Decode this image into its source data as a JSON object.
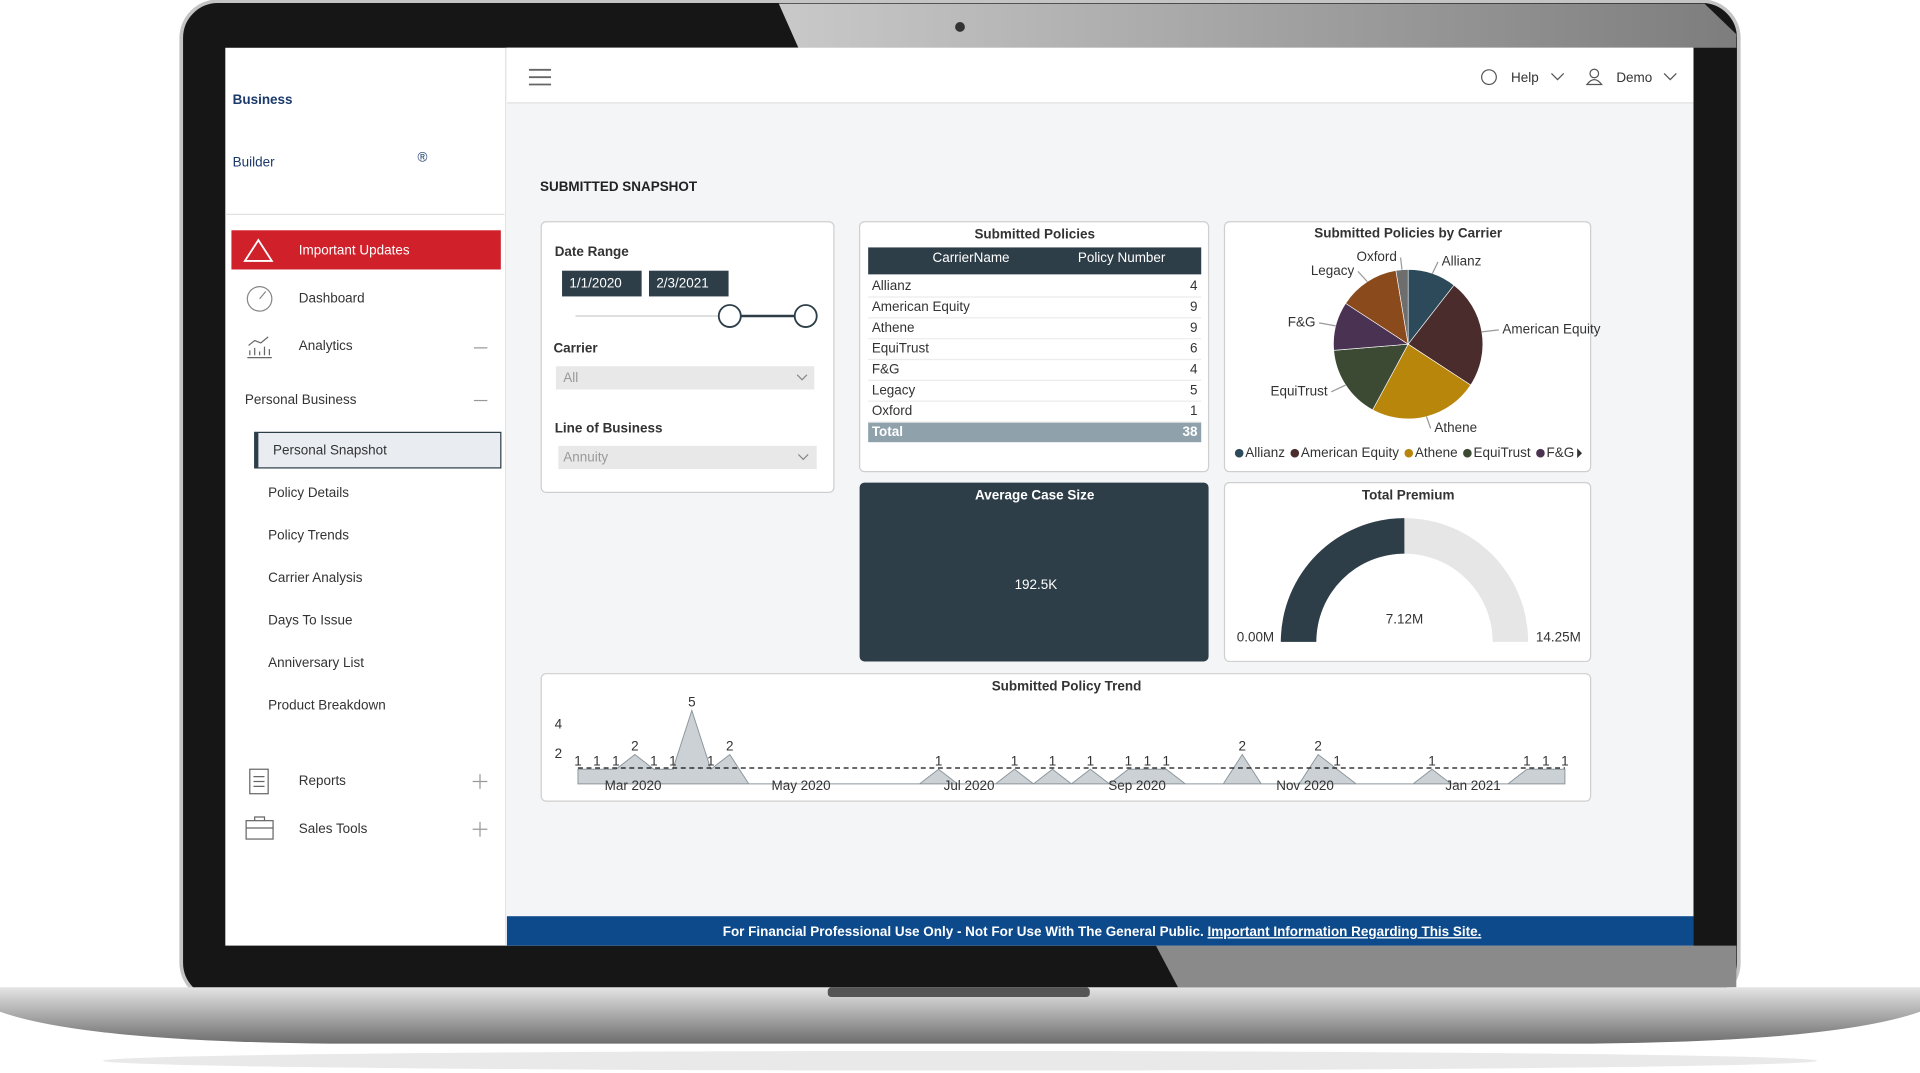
{
  "logo": {
    "line1": "Business",
    "line2": "Builder",
    "mark": "®"
  },
  "topbar": {
    "help": "Help",
    "user": "Demo"
  },
  "nav": {
    "important_updates": "Important Updates",
    "dashboard": "Dashboard",
    "analytics": "Analytics",
    "personal_business": "Personal Business",
    "sub_items": [
      "Personal Snapshot",
      "Policy Details",
      "Policy Trends",
      "Carrier Analysis",
      "Days To Issue",
      "Anniversary List",
      "Product Breakdown"
    ],
    "reports": "Reports",
    "sales_tools": "Sales Tools"
  },
  "page_title": "SUBMITTED SNAPSHOT",
  "filters": {
    "date_range": {
      "label": "Date Range",
      "start": "1/1/2020",
      "end": "2/3/2021"
    },
    "carrier": {
      "label": "Carrier",
      "value": "All"
    },
    "line_of_business": {
      "label": "Line of Business",
      "value": "Annuity"
    }
  },
  "policies_table": {
    "title": "Submitted Policies",
    "columns": [
      "CarrierName",
      "Policy Number"
    ],
    "rows": [
      [
        "Allianz",
        4
      ],
      [
        "American Equity",
        9
      ],
      [
        "Athene",
        9
      ],
      [
        "EquiTrust",
        6
      ],
      [
        "F&G",
        4
      ],
      [
        "Legacy",
        5
      ],
      [
        "Oxford",
        1
      ]
    ],
    "total": [
      "Total",
      38
    ]
  },
  "pie": {
    "type": "pie",
    "title": "Submitted Policies by Carrier",
    "categories": [
      "Allianz",
      "American Equity",
      "Athene",
      "EquiTrust",
      "F&G",
      "Legacy",
      "Oxford"
    ],
    "values": [
      4,
      9,
      9,
      6,
      4,
      5,
      1
    ],
    "colors": [
      "#2c4a5a",
      "#4b2c2c",
      "#b8860b",
      "#3c4a34",
      "#4a3352",
      "#8a4a1c",
      "#6e6e6e"
    ]
  },
  "avg_case": {
    "title": "Average Case Size",
    "value": "192.5K"
  },
  "premium": {
    "type": "gauge",
    "title": "Total Premium",
    "value": {
      "value": 7.12,
      "label": "7.12M"
    },
    "min": {
      "value": 0,
      "label": "0.00M"
    },
    "max": {
      "value": 14.25,
      "label": "14.25M"
    }
  },
  "trend": {
    "type": "area",
    "title": "Submitted Policy Trend",
    "x_labels": [
      "Mar 2020",
      "May 2020",
      "Jul 2020",
      "Sep 2020",
      "Nov 2020",
      "Jan 2021"
    ],
    "values": [
      1,
      1,
      1,
      2,
      1,
      1,
      5,
      1,
      2,
      0,
      0,
      0,
      0,
      0,
      0,
      0,
      0,
      0,
      0,
      1,
      0,
      0,
      0,
      1,
      0,
      1,
      0,
      1,
      0,
      1,
      1,
      1,
      0,
      0,
      0,
      2,
      0,
      0,
      0,
      2,
      1,
      0,
      0,
      0,
      0,
      1,
      0,
      0,
      0,
      0,
      1,
      1,
      1
    ],
    "ylim": [
      0,
      5.2
    ],
    "yticks": [
      2,
      4
    ],
    "color": "#a9b3b8"
  },
  "footer": {
    "notice": "For Financial Professional Use Only - Not For Use With The General Public.",
    "link": "Important Information Regarding This Site."
  }
}
